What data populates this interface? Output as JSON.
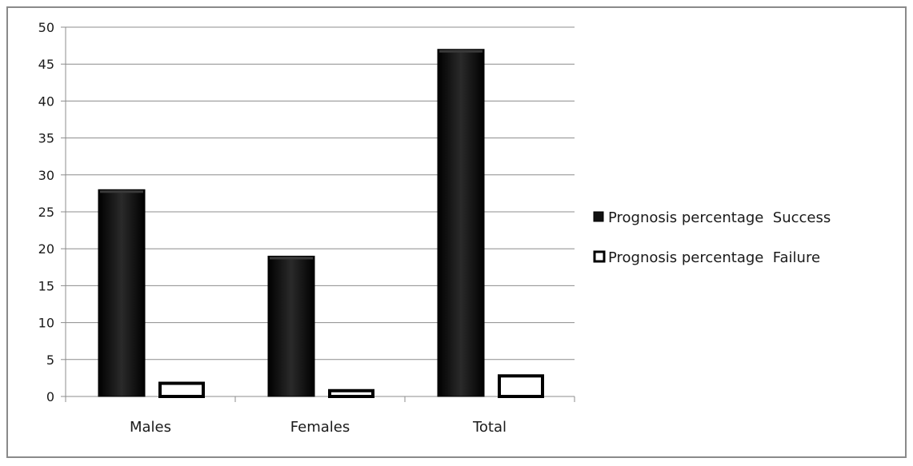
{
  "chart_data": {
    "type": "bar",
    "title": "",
    "xlabel": "",
    "ylabel": "",
    "categories": [
      "Males",
      "Females",
      "Total"
    ],
    "series": [
      {
        "name": "Prognosis percentage  Success",
        "values": [
          28,
          19,
          47
        ],
        "color": "#111111"
      },
      {
        "name": "Prognosis percentage  Failure",
        "values": [
          2,
          1,
          3
        ],
        "color": "#ffffff"
      }
    ],
    "ylim": [
      0,
      50
    ],
    "yticks": [
      0,
      5,
      10,
      15,
      20,
      25,
      30,
      35,
      40,
      45,
      50
    ],
    "grid": true,
    "legend_position": "right"
  }
}
